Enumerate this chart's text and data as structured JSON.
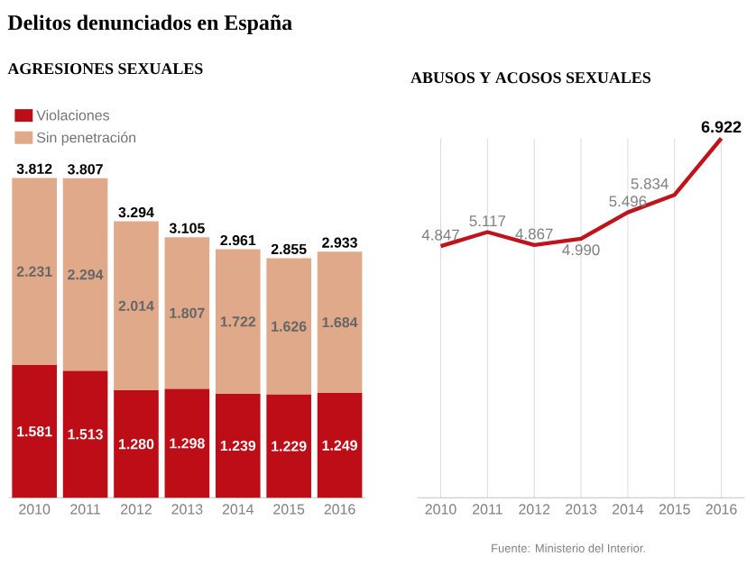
{
  "chart_data": [
    {
      "type": "bar",
      "title": "Delitos denunciados en España",
      "subtitle": "AGRESIONES SEXUALES",
      "stacked": true,
      "legend": "top left",
      "categories": [
        "2010",
        "2011",
        "2012",
        "2013",
        "2014",
        "2015",
        "2016"
      ],
      "series": [
        {
          "name": "Violaciones",
          "color": "#bd0d16",
          "values": [
            1581,
            1513,
            1280,
            1298,
            1239,
            1229,
            1249
          ],
          "value_labels": [
            "1.581",
            "1.513",
            "1.280",
            "1.298",
            "1.239",
            "1.229",
            "1.249"
          ]
        },
        {
          "name": "Sin penetración",
          "color": "#dfa98a",
          "values": [
            2231,
            2294,
            2014,
            1807,
            1722,
            1626,
            1684
          ],
          "value_labels": [
            "2.231",
            "2.294",
            "2.014",
            "1.807",
            "1.722",
            "1.626",
            "1.684"
          ]
        }
      ],
      "totals": [
        "3.812",
        "3.807",
        "3.294",
        "3.105",
        "2.961",
        "2.855",
        "2.933"
      ]
    },
    {
      "type": "line",
      "title": "ABUSOS Y ACOSOS SEXUALES",
      "grid": "x",
      "categories": [
        "2010",
        "2011",
        "2012",
        "2013",
        "2014",
        "2015",
        "2016"
      ],
      "series": [
        {
          "color": "#c0141c",
          "values": [
            4847,
            5117,
            4867,
            4990,
            5496,
            5834,
            6922
          ],
          "value_labels": [
            "4.847",
            "5.117",
            "4.867",
            "4.990",
            "5.496",
            "5.834",
            "6.922"
          ]
        }
      ],
      "annotations": [
        "Fuente: Ministerio del Interior."
      ]
    }
  ]
}
